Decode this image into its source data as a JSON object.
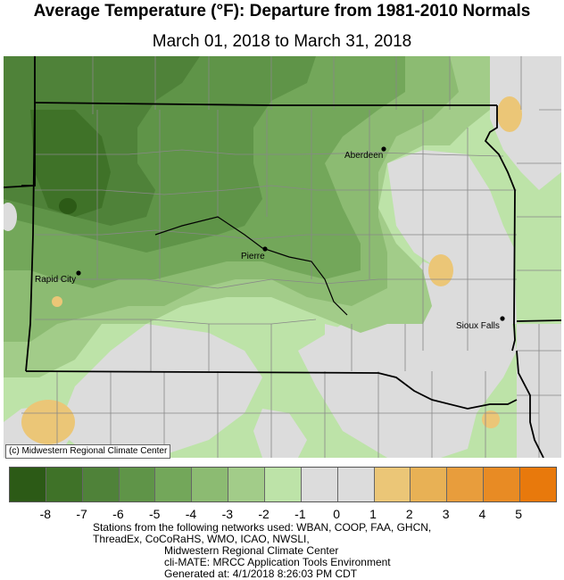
{
  "title": "Average Temperature (°F): Departure from 1981-2010 Normals",
  "subtitle": "March 01, 2018 to March 31, 2018",
  "credit": "(c) Midwestern Regional Climate Center",
  "cities": [
    {
      "name": "Aberdeen"
    },
    {
      "name": "Pierre"
    },
    {
      "name": "Rapid City"
    },
    {
      "name": "Sioux Falls"
    }
  ],
  "legend": {
    "colors": [
      "#2c5a16",
      "#3f7228",
      "#4f8239",
      "#5f9448",
      "#73a75a",
      "#8cbb72",
      "#a2cc89",
      "#bde3a8",
      "#dcdcdc",
      "#dcdcdc",
      "#ebc677",
      "#e8b155",
      "#e89d3c",
      "#e88b24",
      "#e8790c"
    ],
    "labels": [
      "-8",
      "-7",
      "-6",
      "-5",
      "-4",
      "-3",
      "-2",
      "-1",
      "0",
      "1",
      "2",
      "3",
      "4",
      "5"
    ]
  },
  "footer": {
    "line1": "Stations from the following networks used: WBAN, COOP, FAA, GHCN,",
    "line2": "ThreadEx, CoCoRaHS, WMO, ICAO, NWSLI,",
    "line3": "Midwestern Regional Climate Center",
    "line4": "cli-MATE: MRCC Application Tools Environment",
    "line5": "Generated at: 4/1/2018 8:26:03 PM CDT"
  }
}
